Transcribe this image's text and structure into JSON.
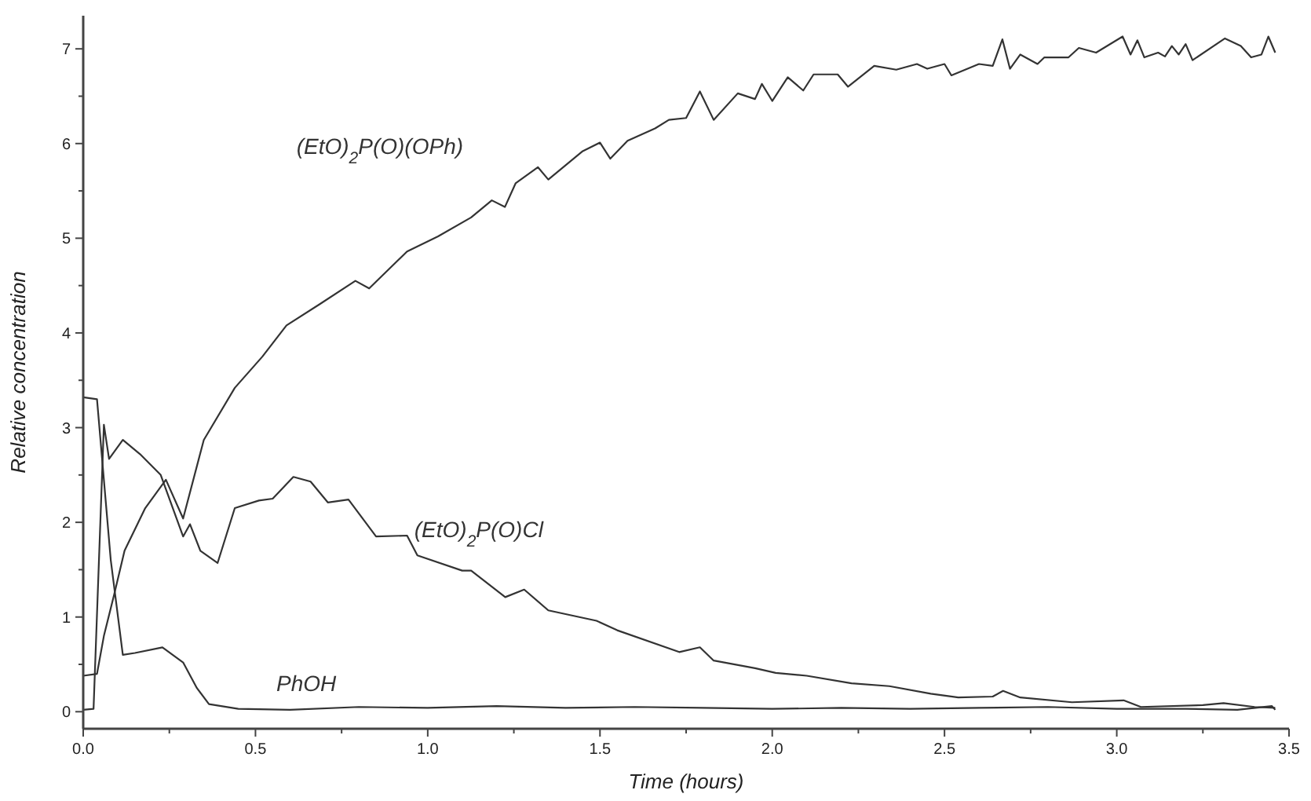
{
  "chart_data": {
    "type": "line",
    "xlabel": "Time (hours)",
    "ylabel": "Relative concentration",
    "xlim": [
      0,
      3.5
    ],
    "ylim": [
      -0.18,
      7.35
    ],
    "xticks": [
      {
        "value": 0,
        "label": "0.0"
      },
      {
        "value": 0.25,
        "label": null
      },
      {
        "value": 0.5,
        "label": "0.5"
      },
      {
        "value": 0.75,
        "label": null
      },
      {
        "value": 1,
        "label": "1.0"
      },
      {
        "value": 1.25,
        "label": null
      },
      {
        "value": 1.5,
        "label": "1.5"
      },
      {
        "value": 1.75,
        "label": null
      },
      {
        "value": 2,
        "label": "2.0"
      },
      {
        "value": 2.25,
        "label": null
      },
      {
        "value": 2.5,
        "label": "2.5"
      },
      {
        "value": 2.75,
        "label": null
      },
      {
        "value": 3,
        "label": "3.0"
      },
      {
        "value": 3.25,
        "label": null
      },
      {
        "value": 3.5,
        "label": "3.5"
      }
    ],
    "yticks": [
      0,
      {
        "value": 0.5,
        "label": null
      },
      1,
      {
        "value": 1.5,
        "label": null
      },
      2,
      {
        "value": 2.5,
        "label": null
      },
      3,
      {
        "value": 3.5,
        "label": null
      },
      4,
      {
        "value": 4.5,
        "label": null
      },
      5,
      {
        "value": 5.5,
        "label": null
      },
      6,
      {
        "value": 6.5,
        "label": null
      },
      7
    ],
    "grid": false,
    "marker": "none",
    "line_style": "solid",
    "series": [
      {
        "name": "(EtO)$_{2}$P(O)(OPh)",
        "color": "#333333",
        "x": [
          0,
          0.04,
          0.06,
          0.09,
          0.12,
          0.18,
          0.24,
          0.29,
          0.35,
          0.44,
          0.52,
          0.59,
          0.685,
          0.79,
          0.83,
          0.94,
          1.03,
          1.126,
          1.186,
          1.224,
          1.255,
          1.32,
          1.35,
          1.45,
          1.5,
          1.53,
          1.58,
          1.66,
          1.7,
          1.75,
          1.79,
          1.83,
          1.9,
          1.95,
          1.97,
          2.0,
          2.045,
          2.09,
          2.12,
          2.19,
          2.22,
          2.296,
          2.36,
          2.42,
          2.45,
          2.5,
          2.52,
          2.6,
          2.64,
          2.668,
          2.69,
          2.72,
          2.77,
          2.79,
          2.86,
          2.89,
          2.94,
          3.017,
          3.04,
          3.06,
          3.08,
          3.12,
          3.14,
          3.16,
          3.18,
          3.2,
          3.22,
          3.314,
          3.36,
          3.39,
          3.42,
          3.44,
          3.46
        ],
        "values": [
          0.38,
          0.4,
          0.8,
          1.24,
          1.7,
          2.15,
          2.45,
          2.04,
          2.87,
          3.42,
          3.75,
          4.08,
          4.3,
          4.55,
          4.47,
          4.86,
          5.02,
          5.22,
          5.4,
          5.33,
          5.58,
          5.75,
          5.62,
          5.92,
          6.01,
          5.84,
          6.03,
          6.16,
          6.25,
          6.27,
          6.55,
          6.25,
          6.53,
          6.47,
          6.63,
          6.45,
          6.7,
          6.56,
          6.73,
          6.73,
          6.6,
          6.82,
          6.78,
          6.84,
          6.79,
          6.84,
          6.72,
          6.84,
          6.82,
          7.1,
          6.79,
          6.94,
          6.84,
          6.91,
          6.91,
          7.01,
          6.96,
          7.13,
          6.94,
          7.09,
          6.91,
          6.96,
          6.92,
          7.03,
          6.94,
          7.05,
          6.88,
          7.11,
          7.03,
          6.91,
          6.94,
          7.13,
          6.96
        ]
      },
      {
        "name": "(EtO)$_{2}$P(O)Cl",
        "color": "#333333",
        "x": [
          0,
          0.03,
          0.06,
          0.075,
          0.115,
          0.165,
          0.225,
          0.29,
          0.31,
          0.34,
          0.39,
          0.44,
          0.51,
          0.55,
          0.61,
          0.66,
          0.71,
          0.77,
          0.85,
          0.94,
          0.97,
          1.1,
          1.126,
          1.225,
          1.28,
          1.35,
          1.49,
          1.55,
          1.73,
          1.79,
          1.83,
          1.95,
          2.01,
          2.1,
          2.23,
          2.34,
          2.46,
          2.54,
          2.64,
          2.67,
          2.72,
          2.87,
          3.02,
          3.07,
          3.25,
          3.31,
          3.4,
          3.46
        ],
        "values": [
          0.02,
          0.03,
          3.03,
          2.67,
          2.87,
          2.72,
          2.5,
          1.85,
          1.98,
          1.7,
          1.57,
          2.15,
          2.23,
          2.25,
          2.48,
          2.43,
          2.21,
          2.24,
          1.85,
          1.86,
          1.65,
          1.49,
          1.49,
          1.21,
          1.29,
          1.07,
          0.96,
          0.86,
          0.63,
          0.68,
          0.54,
          0.46,
          0.41,
          0.38,
          0.3,
          0.27,
          0.19,
          0.15,
          0.16,
          0.22,
          0.15,
          0.1,
          0.12,
          0.05,
          0.07,
          0.09,
          0.05,
          0.04
        ]
      },
      {
        "name": "PhOH",
        "color": "#333333",
        "x": [
          0,
          0.04,
          0.08,
          0.115,
          0.15,
          0.23,
          0.29,
          0.33,
          0.365,
          0.45,
          0.6,
          0.8,
          1.0,
          1.2,
          1.4,
          1.6,
          1.8,
          2.0,
          2.2,
          2.4,
          2.6,
          2.8,
          3.0,
          3.2,
          3.35,
          3.45,
          3.46
        ],
        "values": [
          3.32,
          3.3,
          1.6,
          0.6,
          0.62,
          0.68,
          0.52,
          0.25,
          0.08,
          0.03,
          0.02,
          0.05,
          0.04,
          0.06,
          0.04,
          0.05,
          0.04,
          0.03,
          0.04,
          0.03,
          0.04,
          0.05,
          0.03,
          0.03,
          0.02,
          0.06,
          0.02
        ]
      }
    ]
  }
}
